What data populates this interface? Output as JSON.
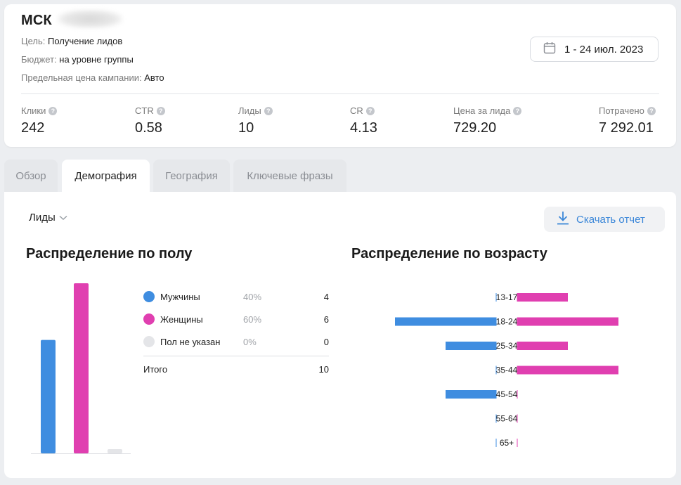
{
  "campaign": {
    "title": "МСК",
    "goal_label": "Цель:",
    "goal_value": "Получение лидов",
    "budget_label": "Бюджет:",
    "budget_value": "на уровне группы",
    "limit_label": "Предельная цена кампании:",
    "limit_value": "Авто"
  },
  "date_range": {
    "label": "1 - 24 июл. 2023",
    "icon": "calendar-icon"
  },
  "metrics": [
    {
      "label": "Клики",
      "value": "242"
    },
    {
      "label": "CTR",
      "value": "0.58"
    },
    {
      "label": "Лиды",
      "value": "10"
    },
    {
      "label": "CR",
      "value": "4.13"
    },
    {
      "label": "Цена за лида",
      "value": "729.20"
    },
    {
      "label": "Потрачено",
      "value": "7 292.01"
    }
  ],
  "tabs": [
    {
      "label": "Обзор",
      "active": false
    },
    {
      "label": "Демография",
      "active": true
    },
    {
      "label": "География",
      "active": false
    },
    {
      "label": "Ключевые фразы",
      "active": false
    }
  ],
  "toolbar": {
    "metric_select": "Лиды",
    "download_label": "Скачать отчет",
    "download_icon": "download-icon"
  },
  "colors": {
    "male": "#3f8de0",
    "female": "#e03fb0",
    "unknown": "#e4e5e8",
    "accent": "#3a86d8"
  },
  "gender": {
    "title": "Распределение по полу",
    "legend": [
      {
        "label": "Мужчины",
        "percent": "40%",
        "count": "4"
      },
      {
        "label": "Женщины",
        "percent": "60%",
        "count": "6"
      },
      {
        "label": "Пол не указан",
        "percent": "0%",
        "count": "0"
      }
    ],
    "total_label": "Итого",
    "total_value": "10"
  },
  "age": {
    "title": "Распределение по возрасту"
  },
  "chart_data": [
    {
      "type": "bar",
      "categories": [
        "Мужчины",
        "Женщины",
        "Пол не указан"
      ],
      "values": [
        4,
        6,
        0
      ]
    },
    {
      "type": "bar",
      "categories": [
        "13-17",
        "18-24",
        "25-34",
        "35-44",
        "45-54",
        "55-64",
        "65+"
      ],
      "series": [
        {
          "name": "Мужчины",
          "values": [
            0,
            2,
            1,
            0,
            1,
            0,
            0
          ]
        },
        {
          "name": "Женщины",
          "values": [
            1,
            2,
            1,
            2,
            0,
            0,
            0
          ]
        }
      ]
    }
  ]
}
